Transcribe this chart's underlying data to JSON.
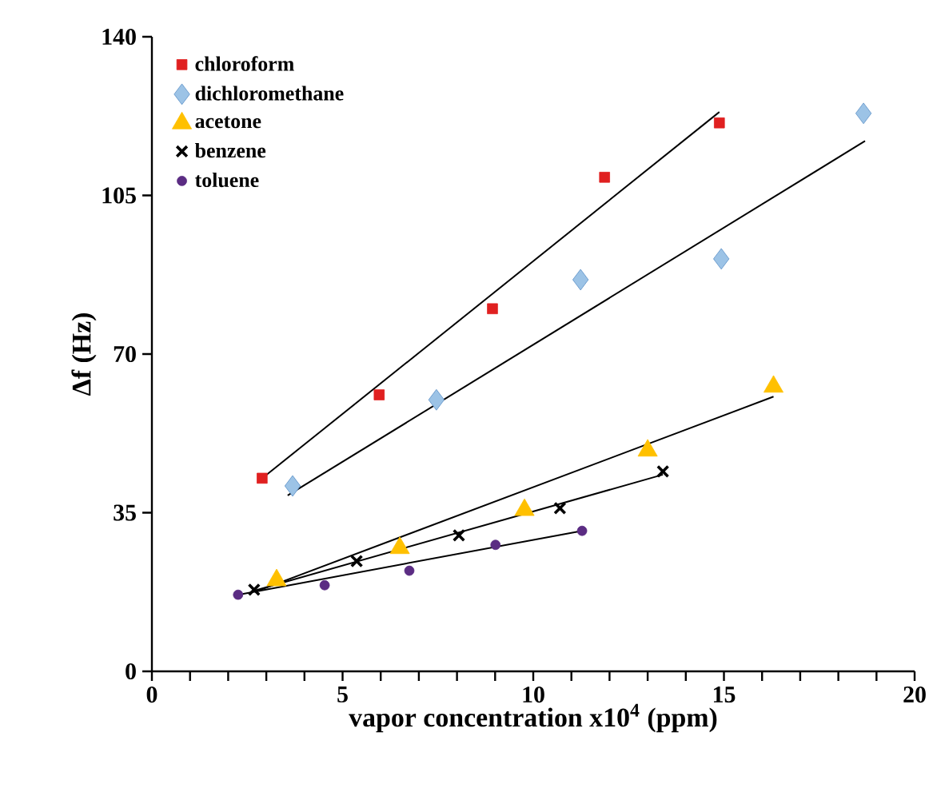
{
  "chart_data": {
    "type": "scatter",
    "xlabel": "vapor concentration x10$^{4}$ (ppm)",
    "ylabel": "Δf (Hz)",
    "xlim": [
      0,
      20
    ],
    "ylim": [
      0,
      140
    ],
    "xticks": [
      0,
      5,
      10,
      15,
      20
    ],
    "yticks": [
      0,
      35,
      70,
      105,
      140
    ],
    "legend": "top left",
    "grid": false,
    "series": [
      {
        "name": "chloroform",
        "color": "#e02020",
        "marker": "square",
        "x": [
          2.89,
          5.96,
          8.93,
          11.87,
          14.88
        ],
        "values": [
          42.6,
          61.0,
          80.0,
          109.0,
          121.0
        ]
      },
      {
        "name": "dichloromethane",
        "color": "#9cc3e6",
        "marker": "diamond",
        "x": [
          3.69,
          7.46,
          11.24,
          14.93,
          18.66
        ],
        "values": [
          40.9,
          59.9,
          86.4,
          91.0,
          123.1
        ]
      },
      {
        "name": "acetone",
        "color": "#ffc000",
        "marker": "triangle",
        "x": [
          3.27,
          6.5,
          9.77,
          13.0,
          16.3
        ],
        "values": [
          20.1,
          27.2,
          35.6,
          48.7,
          62.8
        ]
      },
      {
        "name": "benzene",
        "color": "#000000",
        "marker": "cross",
        "x": [
          2.68,
          5.37,
          8.05,
          10.7,
          13.4
        ],
        "values": [
          18.0,
          24.3,
          30.0,
          36.0,
          44.1
        ]
      },
      {
        "name": "toluene",
        "color": "#5b2c83",
        "marker": "circle",
        "x": [
          2.26,
          4.53,
          6.75,
          9.01,
          11.28
        ],
        "values": [
          16.9,
          19.0,
          22.2,
          27.9,
          31.0
        ]
      },
      {
        "type": "line",
        "color": "#000000",
        "marker": "none",
        "x": [
          2.85,
          14.88
        ],
        "values": [
          42.3,
          123.4
        ]
      },
      {
        "type": "line",
        "color": "#000000",
        "marker": "none",
        "x": [
          3.56,
          18.7
        ],
        "values": [
          38.8,
          117.0
        ]
      },
      {
        "type": "line",
        "color": "#000000",
        "marker": "none",
        "x": [
          2.73,
          16.3
        ],
        "values": [
          17.6,
          60.6
        ]
      },
      {
        "type": "line",
        "color": "#000000",
        "marker": "none",
        "x": [
          2.6,
          13.4
        ],
        "values": [
          17.6,
          43.4
        ]
      },
      {
        "type": "line",
        "color": "#000000",
        "marker": "none",
        "x": [
          2.26,
          11.28
        ],
        "values": [
          16.9,
          31.0
        ]
      }
    ]
  }
}
